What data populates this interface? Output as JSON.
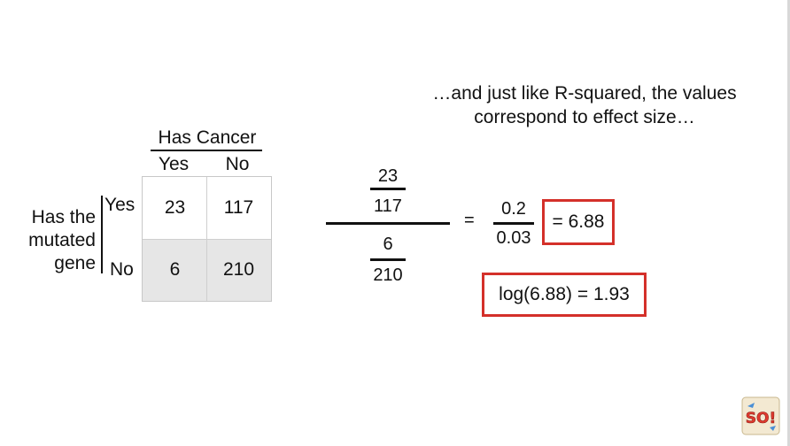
{
  "caption": {
    "line1": "…and just like R-squared, the values",
    "line2": "correspond to effect size…"
  },
  "table": {
    "column_group_title": "Has Cancer",
    "column_headers": [
      "Yes",
      "No"
    ],
    "row_group_title": [
      "Has the",
      "mutated",
      "gene"
    ],
    "row_headers": [
      "Yes",
      "No"
    ],
    "cells": [
      [
        "23",
        "117"
      ],
      [
        "6",
        "210"
      ]
    ]
  },
  "equation": {
    "top_numerator": "23",
    "top_denominator": "117",
    "bottom_numerator": "6",
    "bottom_denominator": "210",
    "equals_sign": "=",
    "ratio_numerator": "0.2",
    "ratio_denominator": "0.03",
    "result": "= 6.88",
    "log_result": "log(6.88) = 1.93"
  },
  "colors": {
    "highlight_border": "#d4302a",
    "shaded_cell": "#e6e6e6"
  },
  "logo": {
    "icon": "statquest-so-logo",
    "text": "SO!"
  }
}
